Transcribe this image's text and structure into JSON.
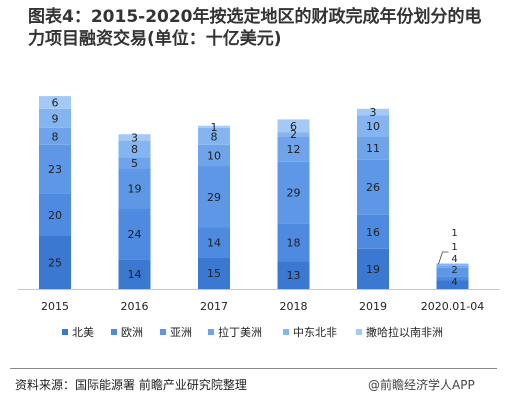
{
  "title": "图表4：2015-2020年按选定地区的财政完成年份划分的电力项目融资交易(单位：十亿美元)",
  "source": "资料来源：国际能源署 前瞻产业研究院整理",
  "brand": "@前瞻经济学人APP",
  "colors": {
    "北美": "#3a78d2",
    "欧洲": "#4d8ae0",
    "亚洲": "#5d97e6",
    "拉丁美洲": "#6fa4ea",
    "中东北非": "#84b5f0",
    "撒哈拉以南非洲": "#a4c9f5",
    "axis": "#c8c8c8",
    "text": "#222222"
  },
  "chart_data": {
    "type": "bar",
    "stacked": true,
    "categories": [
      "2015",
      "2016",
      "2017",
      "2018",
      "2019",
      "2020.01-04"
    ],
    "series": [
      {
        "name": "北美",
        "values": [
          25,
          14,
          15,
          13,
          19,
          4
        ]
      },
      {
        "name": "欧洲",
        "values": [
          20,
          24,
          14,
          18,
          16,
          2
        ]
      },
      {
        "name": "亚洲",
        "values": [
          23,
          19,
          29,
          29,
          26,
          4
        ]
      },
      {
        "name": "拉丁美洲",
        "values": [
          8,
          5,
          10,
          12,
          11,
          1
        ]
      },
      {
        "name": "中东北非",
        "values": [
          9,
          8,
          8,
          2,
          10,
          1
        ]
      },
      {
        "name": "撒哈拉以南非洲",
        "values": [
          6,
          3,
          1,
          6,
          3,
          null
        ]
      }
    ],
    "ylim": [
      0,
      100
    ],
    "legend": "bottom",
    "grid": false
  }
}
